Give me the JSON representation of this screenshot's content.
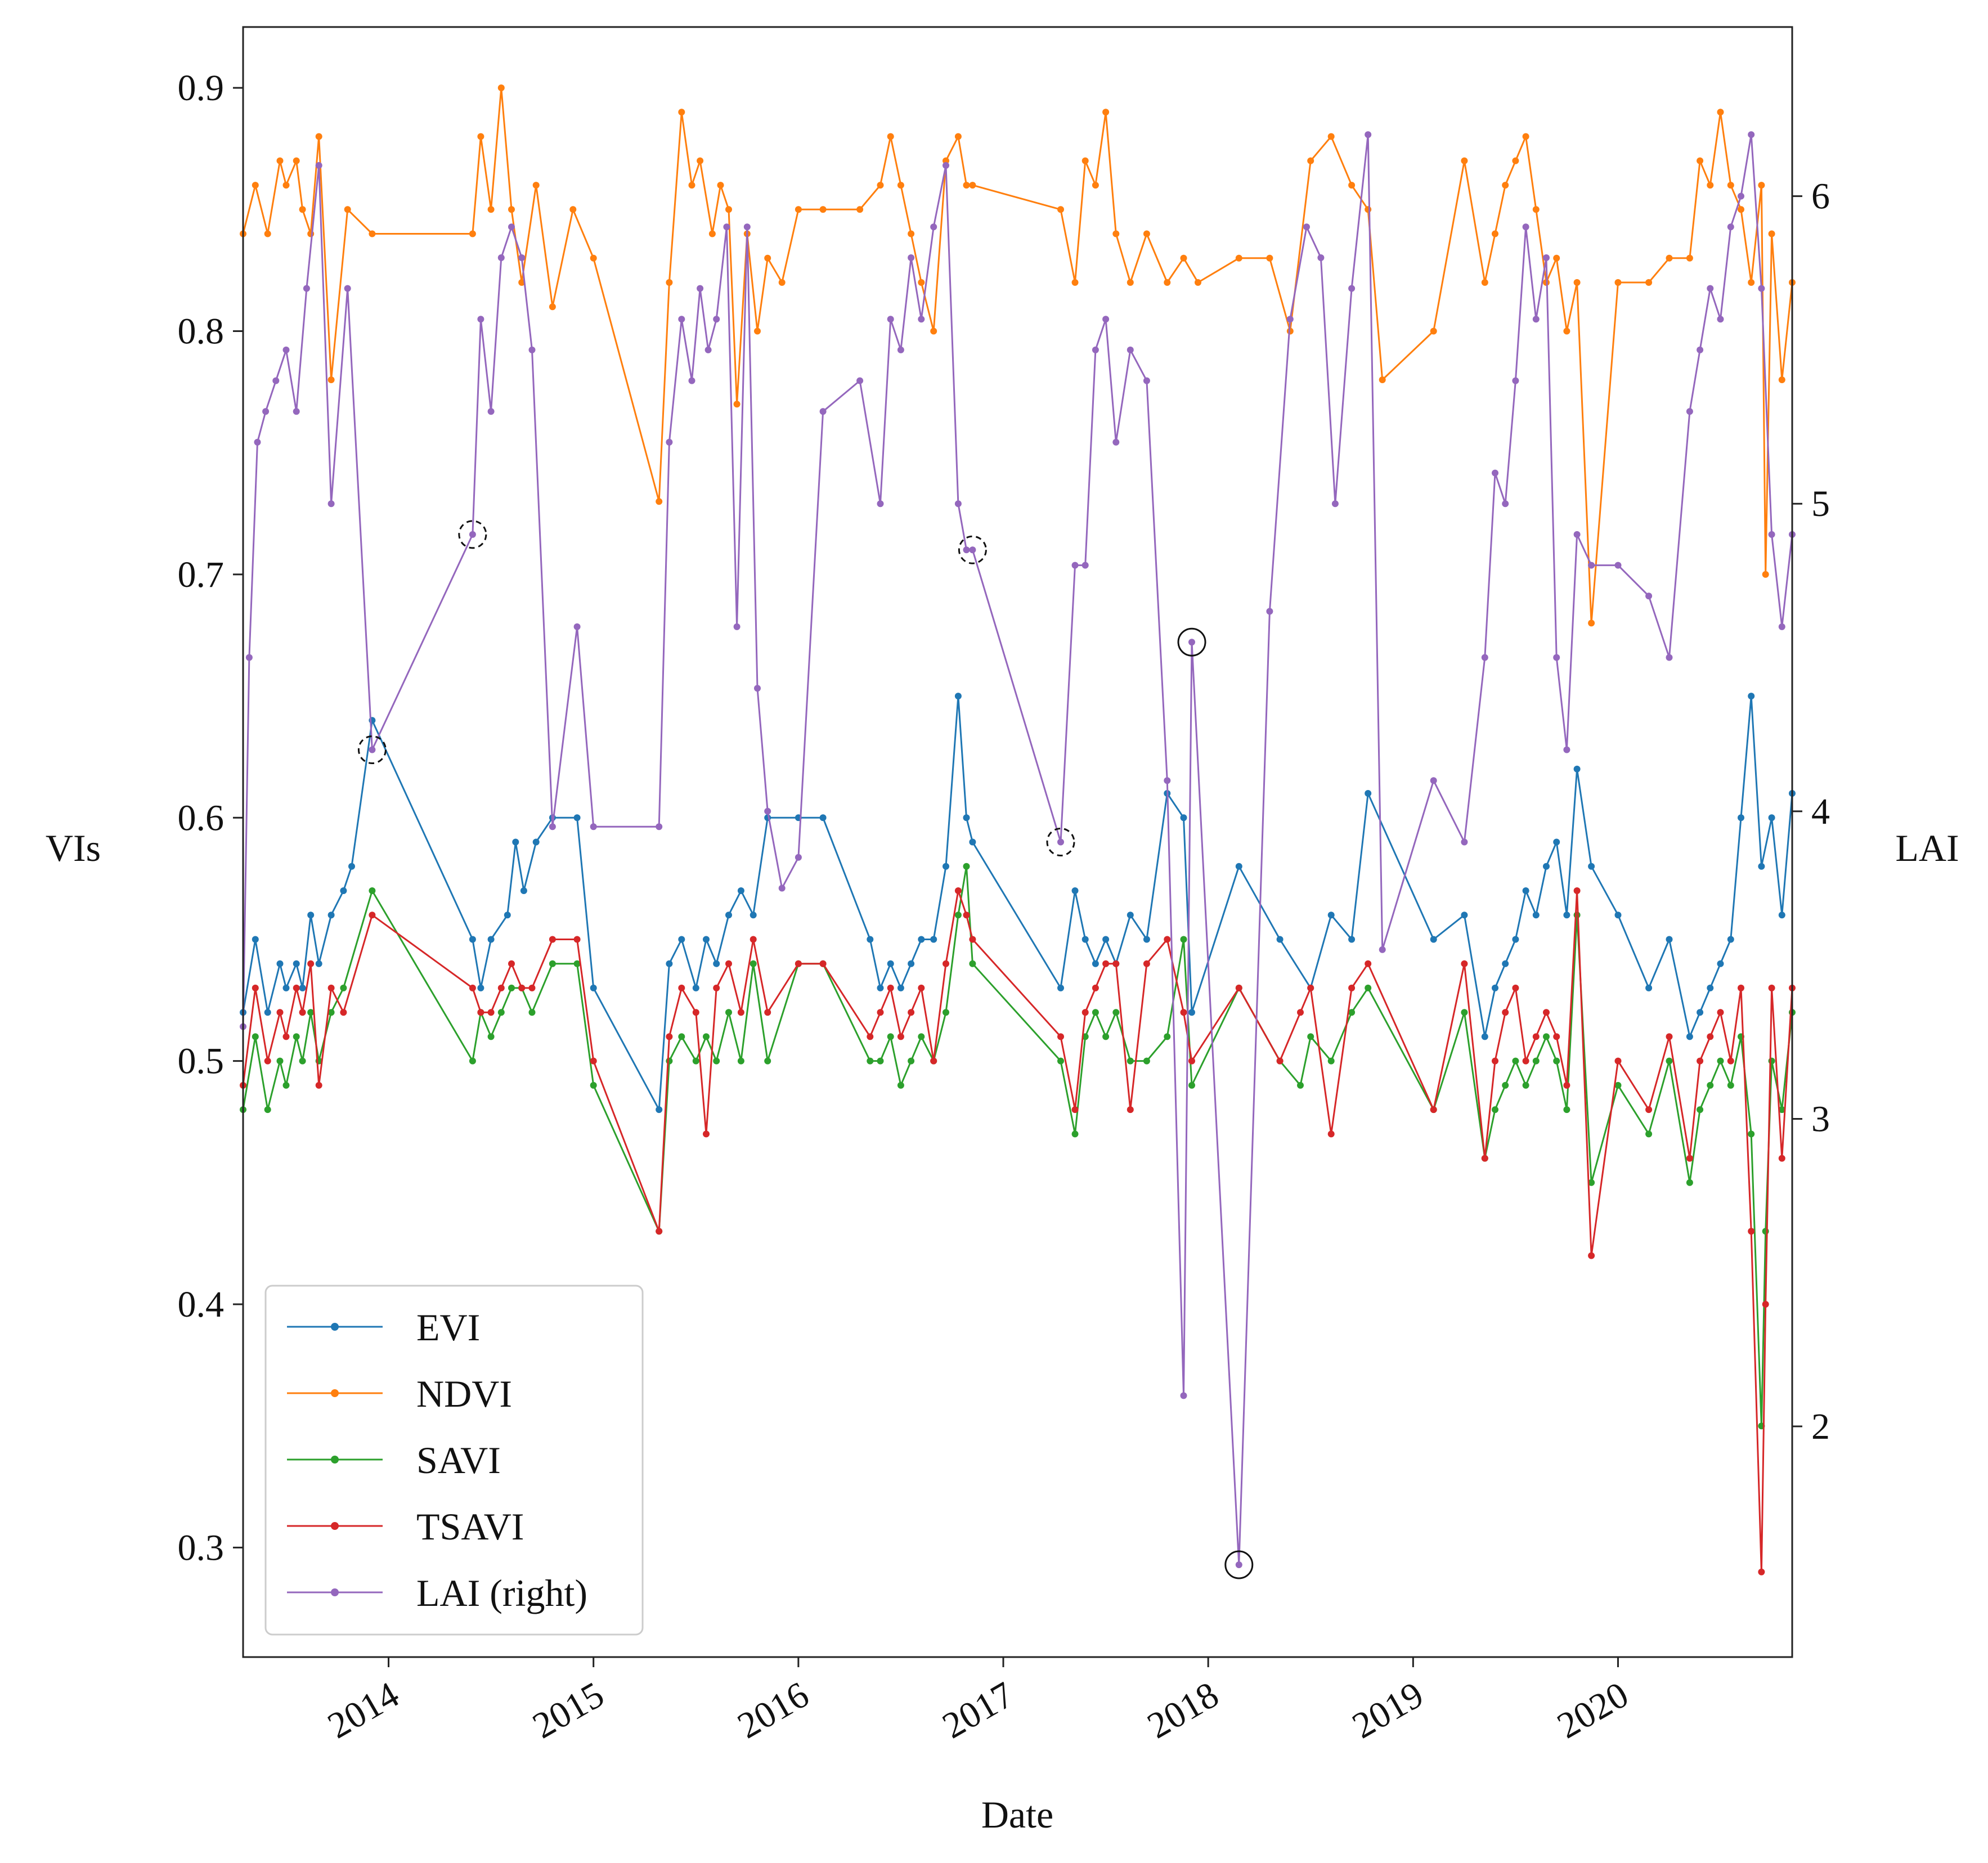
{
  "chart_data": {
    "type": "line",
    "title": "",
    "xlabel": "Date",
    "ylabel_left": "VIs",
    "ylabel_right": "LAI",
    "x_unit": "decimal year",
    "xlim": [
      2013.29,
      2020.85
    ],
    "ylim_left": [
      0.255,
      0.925
    ],
    "ylim_right": [
      1.25,
      6.55
    ],
    "x_ticks": [
      {
        "value": 2014,
        "label": "2014"
      },
      {
        "value": 2015,
        "label": "2015"
      },
      {
        "value": 2016,
        "label": "2016"
      },
      {
        "value": 2017,
        "label": "2017"
      },
      {
        "value": 2018,
        "label": "2018"
      },
      {
        "value": 2019,
        "label": "2019"
      },
      {
        "value": 2020,
        "label": "2020"
      }
    ],
    "y_ticks_left": [
      {
        "value": 0.3,
        "label": "0.3"
      },
      {
        "value": 0.4,
        "label": "0.4"
      },
      {
        "value": 0.5,
        "label": "0.5"
      },
      {
        "value": 0.6,
        "label": "0.6"
      },
      {
        "value": 0.7,
        "label": "0.7"
      },
      {
        "value": 0.8,
        "label": "0.8"
      },
      {
        "value": 0.9,
        "label": "0.9"
      }
    ],
    "y_ticks_right": [
      {
        "value": 2,
        "label": "2"
      },
      {
        "value": 3,
        "label": "3"
      },
      {
        "value": 4,
        "label": "4"
      },
      {
        "value": 5,
        "label": "5"
      },
      {
        "value": 6,
        "label": "6"
      }
    ],
    "legend": {
      "placement": "bottom-left",
      "frame": true
    },
    "series": [
      {
        "name": "EVI",
        "label": "EVI",
        "axis": "left",
        "color": "#1f77b4",
        "x": [
          2013.29,
          2013.35,
          2013.41,
          2013.47,
          2013.5,
          2013.55,
          2013.58,
          2013.62,
          2013.66,
          2013.72,
          2013.78,
          2013.82,
          2013.92,
          2014.41,
          2014.45,
          2014.5,
          2014.58,
          2014.62,
          2014.66,
          2014.72,
          2014.8,
          2014.92,
          2015.0,
          2015.32,
          2015.37,
          2015.43,
          2015.5,
          2015.55,
          2015.6,
          2015.66,
          2015.72,
          2015.78,
          2015.85,
          2016.0,
          2016.12,
          2016.35,
          2016.4,
          2016.45,
          2016.5,
          2016.55,
          2016.6,
          2016.66,
          2016.72,
          2016.78,
          2016.82,
          2016.85,
          2017.28,
          2017.35,
          2017.4,
          2017.45,
          2017.5,
          2017.55,
          2017.62,
          2017.7,
          2017.8,
          2017.88,
          2017.92,
          2018.15,
          2018.35,
          2018.5,
          2018.6,
          2018.7,
          2018.78,
          2019.1,
          2019.25,
          2019.35,
          2019.4,
          2019.45,
          2019.5,
          2019.55,
          2019.6,
          2019.65,
          2019.7,
          2019.75,
          2019.8,
          2019.87,
          2020.0,
          2020.15,
          2020.25,
          2020.35,
          2020.4,
          2020.45,
          2020.5,
          2020.55,
          2020.6,
          2020.65,
          2020.7,
          2020.75,
          2020.8,
          2020.85
        ],
        "y": [
          0.52,
          0.55,
          0.52,
          0.54,
          0.53,
          0.54,
          0.53,
          0.56,
          0.54,
          0.56,
          0.57,
          0.58,
          0.64,
          0.55,
          0.53,
          0.55,
          0.56,
          0.59,
          0.57,
          0.59,
          0.6,
          0.6,
          0.53,
          0.48,
          0.54,
          0.55,
          0.53,
          0.55,
          0.54,
          0.56,
          0.57,
          0.56,
          0.6,
          0.6,
          0.6,
          0.55,
          0.53,
          0.54,
          0.53,
          0.54,
          0.55,
          0.55,
          0.58,
          0.65,
          0.6,
          0.59,
          0.53,
          0.57,
          0.55,
          0.54,
          0.55,
          0.54,
          0.56,
          0.55,
          0.61,
          0.6,
          0.52,
          0.58,
          0.55,
          0.53,
          0.56,
          0.55,
          0.61,
          0.55,
          0.56,
          0.51,
          0.53,
          0.54,
          0.55,
          0.57,
          0.56,
          0.58,
          0.59,
          0.56,
          0.62,
          0.58,
          0.56,
          0.53,
          0.55,
          0.51,
          0.52,
          0.53,
          0.54,
          0.55,
          0.6,
          0.65,
          0.58,
          0.6,
          0.56,
          0.61
        ]
      },
      {
        "name": "NDVI",
        "label": "NDVI",
        "axis": "left",
        "color": "#ff7f0e",
        "x": [
          2013.29,
          2013.35,
          2013.41,
          2013.47,
          2013.5,
          2013.55,
          2013.58,
          2013.62,
          2013.66,
          2013.72,
          2013.8,
          2013.92,
          2014.41,
          2014.45,
          2014.5,
          2014.55,
          2014.6,
          2014.65,
          2014.72,
          2014.8,
          2014.9,
          2015.0,
          2015.32,
          2015.37,
          2015.43,
          2015.48,
          2015.52,
          2015.58,
          2015.62,
          2015.66,
          2015.7,
          2015.75,
          2015.8,
          2015.85,
          2015.92,
          2016.0,
          2016.12,
          2016.3,
          2016.4,
          2016.45,
          2016.5,
          2016.55,
          2016.6,
          2016.66,
          2016.72,
          2016.78,
          2016.82,
          2016.85,
          2017.28,
          2017.35,
          2017.4,
          2017.45,
          2017.5,
          2017.55,
          2017.62,
          2017.7,
          2017.8,
          2017.88,
          2017.95,
          2018.15,
          2018.3,
          2018.4,
          2018.5,
          2018.6,
          2018.7,
          2018.78,
          2018.85,
          2019.1,
          2019.25,
          2019.35,
          2019.4,
          2019.45,
          2019.5,
          2019.55,
          2019.6,
          2019.65,
          2019.7,
          2019.75,
          2019.8,
          2019.87,
          2020.0,
          2020.15,
          2020.25,
          2020.35,
          2020.4,
          2020.45,
          2020.5,
          2020.55,
          2020.6,
          2020.65,
          2020.7,
          2020.72,
          2020.75,
          2020.8,
          2020.85
        ],
        "y": [
          0.84,
          0.86,
          0.84,
          0.87,
          0.86,
          0.87,
          0.85,
          0.84,
          0.88,
          0.78,
          0.85,
          0.84,
          0.84,
          0.88,
          0.85,
          0.9,
          0.85,
          0.82,
          0.86,
          0.81,
          0.85,
          0.83,
          0.73,
          0.82,
          0.89,
          0.86,
          0.87,
          0.84,
          0.86,
          0.85,
          0.77,
          0.84,
          0.8,
          0.83,
          0.82,
          0.85,
          0.85,
          0.85,
          0.86,
          0.88,
          0.86,
          0.84,
          0.82,
          0.8,
          0.87,
          0.88,
          0.86,
          0.86,
          0.85,
          0.82,
          0.87,
          0.86,
          0.89,
          0.84,
          0.82,
          0.84,
          0.82,
          0.83,
          0.82,
          0.83,
          0.83,
          0.8,
          0.87,
          0.88,
          0.86,
          0.85,
          0.78,
          0.8,
          0.87,
          0.82,
          0.84,
          0.86,
          0.87,
          0.88,
          0.85,
          0.82,
          0.83,
          0.8,
          0.82,
          0.68,
          0.82,
          0.82,
          0.83,
          0.83,
          0.87,
          0.86,
          0.89,
          0.86,
          0.85,
          0.82,
          0.86,
          0.7,
          0.84,
          0.78,
          0.82
        ]
      },
      {
        "name": "SAVI",
        "label": "SAVI",
        "axis": "left",
        "color": "#2ca02c",
        "x": [
          2013.29,
          2013.35,
          2013.41,
          2013.47,
          2013.5,
          2013.55,
          2013.58,
          2013.62,
          2013.66,
          2013.72,
          2013.78,
          2013.92,
          2014.41,
          2014.45,
          2014.5,
          2014.55,
          2014.6,
          2014.65,
          2014.7,
          2014.8,
          2014.92,
          2015.0,
          2015.32,
          2015.37,
          2015.43,
          2015.5,
          2015.55,
          2015.6,
          2015.66,
          2015.72,
          2015.78,
          2015.85,
          2016.0,
          2016.12,
          2016.35,
          2016.4,
          2016.45,
          2016.5,
          2016.55,
          2016.6,
          2016.66,
          2016.72,
          2016.78,
          2016.82,
          2016.85,
          2017.28,
          2017.35,
          2017.4,
          2017.45,
          2017.5,
          2017.55,
          2017.62,
          2017.7,
          2017.8,
          2017.88,
          2017.92,
          2018.15,
          2018.35,
          2018.45,
          2018.5,
          2018.6,
          2018.7,
          2018.78,
          2019.1,
          2019.25,
          2019.35,
          2019.4,
          2019.45,
          2019.5,
          2019.55,
          2019.6,
          2019.65,
          2019.7,
          2019.75,
          2019.8,
          2019.87,
          2020.0,
          2020.15,
          2020.25,
          2020.35,
          2020.4,
          2020.45,
          2020.5,
          2020.55,
          2020.6,
          2020.65,
          2020.7,
          2020.72,
          2020.75,
          2020.8,
          2020.85
        ],
        "y": [
          0.48,
          0.51,
          0.48,
          0.5,
          0.49,
          0.51,
          0.5,
          0.52,
          0.5,
          0.52,
          0.53,
          0.57,
          0.5,
          0.52,
          0.51,
          0.52,
          0.53,
          0.53,
          0.52,
          0.54,
          0.54,
          0.49,
          0.43,
          0.5,
          0.51,
          0.5,
          0.51,
          0.5,
          0.52,
          0.5,
          0.54,
          0.5,
          0.54,
          0.54,
          0.5,
          0.5,
          0.51,
          0.49,
          0.5,
          0.51,
          0.5,
          0.52,
          0.56,
          0.58,
          0.54,
          0.5,
          0.47,
          0.51,
          0.52,
          0.51,
          0.52,
          0.5,
          0.5,
          0.51,
          0.55,
          0.49,
          0.53,
          0.5,
          0.49,
          0.51,
          0.5,
          0.52,
          0.53,
          0.48,
          0.52,
          0.46,
          0.48,
          0.49,
          0.5,
          0.49,
          0.5,
          0.51,
          0.5,
          0.48,
          0.56,
          0.45,
          0.49,
          0.47,
          0.5,
          0.45,
          0.48,
          0.49,
          0.5,
          0.49,
          0.51,
          0.47,
          0.35,
          0.43,
          0.5,
          0.48,
          0.52
        ]
      },
      {
        "name": "TSAVI",
        "label": "TSAVI",
        "axis": "left",
        "color": "#d62728",
        "x": [
          2013.29,
          2013.35,
          2013.41,
          2013.47,
          2013.5,
          2013.55,
          2013.58,
          2013.62,
          2013.66,
          2013.72,
          2013.78,
          2013.92,
          2014.41,
          2014.45,
          2014.5,
          2014.55,
          2014.6,
          2014.65,
          2014.7,
          2014.8,
          2014.92,
          2015.0,
          2015.32,
          2015.37,
          2015.43,
          2015.5,
          2015.55,
          2015.6,
          2015.66,
          2015.72,
          2015.78,
          2015.85,
          2016.0,
          2016.12,
          2016.35,
          2016.4,
          2016.45,
          2016.5,
          2016.55,
          2016.6,
          2016.66,
          2016.72,
          2016.78,
          2016.82,
          2016.85,
          2017.28,
          2017.35,
          2017.4,
          2017.45,
          2017.5,
          2017.55,
          2017.62,
          2017.7,
          2017.8,
          2017.88,
          2017.92,
          2018.15,
          2018.35,
          2018.45,
          2018.5,
          2018.6,
          2018.7,
          2018.78,
          2019.1,
          2019.25,
          2019.35,
          2019.4,
          2019.45,
          2019.5,
          2019.55,
          2019.6,
          2019.65,
          2019.7,
          2019.75,
          2019.8,
          2019.87,
          2020.0,
          2020.15,
          2020.25,
          2020.35,
          2020.4,
          2020.45,
          2020.5,
          2020.55,
          2020.6,
          2020.65,
          2020.7,
          2020.72,
          2020.75,
          2020.8,
          2020.85
        ],
        "y": [
          0.49,
          0.53,
          0.5,
          0.52,
          0.51,
          0.53,
          0.52,
          0.54,
          0.49,
          0.53,
          0.52,
          0.56,
          0.53,
          0.52,
          0.52,
          0.53,
          0.54,
          0.53,
          0.53,
          0.55,
          0.55,
          0.5,
          0.43,
          0.51,
          0.53,
          0.52,
          0.47,
          0.53,
          0.54,
          0.52,
          0.55,
          0.52,
          0.54,
          0.54,
          0.51,
          0.52,
          0.53,
          0.51,
          0.52,
          0.53,
          0.5,
          0.54,
          0.57,
          0.56,
          0.55,
          0.51,
          0.48,
          0.52,
          0.53,
          0.54,
          0.54,
          0.48,
          0.54,
          0.55,
          0.52,
          0.5,
          0.53,
          0.5,
          0.52,
          0.53,
          0.47,
          0.53,
          0.54,
          0.48,
          0.54,
          0.46,
          0.5,
          0.52,
          0.53,
          0.5,
          0.51,
          0.52,
          0.51,
          0.49,
          0.57,
          0.42,
          0.5,
          0.48,
          0.51,
          0.46,
          0.5,
          0.51,
          0.52,
          0.5,
          0.53,
          0.43,
          0.29,
          0.4,
          0.53,
          0.46,
          0.53
        ]
      },
      {
        "name": "LAI",
        "label": "LAI (right)",
        "axis": "right",
        "color": "#9467bd",
        "x": [
          2013.29,
          2013.32,
          2013.36,
          2013.4,
          2013.45,
          2013.5,
          2013.55,
          2013.6,
          2013.66,
          2013.72,
          2013.8,
          2013.92,
          2014.41,
          2014.45,
          2014.5,
          2014.55,
          2014.6,
          2014.65,
          2014.7,
          2014.8,
          2014.92,
          2015.0,
          2015.32,
          2015.37,
          2015.43,
          2015.48,
          2015.52,
          2015.56,
          2015.6,
          2015.65,
          2015.7,
          2015.75,
          2015.8,
          2015.85,
          2015.92,
          2016.0,
          2016.12,
          2016.3,
          2016.4,
          2016.45,
          2016.5,
          2016.55,
          2016.6,
          2016.66,
          2016.72,
          2016.78,
          2016.82,
          2016.85,
          2017.28,
          2017.35,
          2017.4,
          2017.45,
          2017.5,
          2017.55,
          2017.62,
          2017.7,
          2017.8,
          2017.88,
          2017.92,
          2018.15,
          2018.3,
          2018.4,
          2018.48,
          2018.55,
          2018.62,
          2018.7,
          2018.78,
          2018.85,
          2019.1,
          2019.25,
          2019.35,
          2019.4,
          2019.45,
          2019.5,
          2019.55,
          2019.6,
          2019.65,
          2019.7,
          2019.75,
          2019.8,
          2019.87,
          2020.0,
          2020.15,
          2020.25,
          2020.35,
          2020.4,
          2020.45,
          2020.5,
          2020.55,
          2020.6,
          2020.65,
          2020.7,
          2020.75,
          2020.8,
          2020.85
        ],
        "y": [
          3.3,
          4.5,
          5.2,
          5.3,
          5.4,
          5.5,
          5.3,
          5.7,
          6.1,
          5.0,
          5.7,
          4.2,
          4.9,
          5.6,
          5.3,
          5.8,
          5.9,
          5.8,
          5.5,
          3.95,
          4.6,
          3.95,
          3.95,
          5.2,
          5.6,
          5.4,
          5.7,
          5.5,
          5.6,
          5.9,
          4.6,
          5.9,
          4.4,
          4.0,
          3.75,
          3.85,
          5.3,
          5.4,
          5.0,
          5.6,
          5.5,
          5.8,
          5.6,
          5.9,
          6.1,
          5.0,
          4.85,
          4.85,
          3.9,
          4.8,
          4.8,
          5.5,
          5.6,
          5.2,
          5.5,
          5.4,
          4.1,
          2.1,
          4.55,
          1.55,
          4.65,
          5.6,
          5.9,
          5.8,
          5.0,
          5.7,
          6.2,
          3.55,
          4.1,
          3.9,
          4.5,
          5.1,
          5.0,
          5.4,
          5.9,
          5.6,
          5.8,
          4.5,
          4.2,
          4.9,
          4.8,
          4.8,
          4.7,
          4.5,
          5.3,
          5.5,
          5.7,
          5.6,
          5.9,
          6.0,
          6.2,
          5.7,
          4.9,
          4.6,
          4.9
        ]
      }
    ],
    "annotations": [
      {
        "type": "circle",
        "style": "dashed",
        "x": 2013.92,
        "y": 4.2,
        "axis": "right"
      },
      {
        "type": "circle",
        "style": "dashed",
        "x": 2014.41,
        "y": 4.9,
        "axis": "right"
      },
      {
        "type": "circle",
        "style": "dashed",
        "x": 2016.85,
        "y": 4.85,
        "axis": "right"
      },
      {
        "type": "circle",
        "style": "dashed",
        "x": 2017.28,
        "y": 3.9,
        "axis": "right"
      },
      {
        "type": "circle",
        "style": "solid",
        "x": 2017.92,
        "y": 4.55,
        "axis": "right"
      },
      {
        "type": "circle",
        "style": "solid",
        "x": 2018.15,
        "y": 1.55,
        "axis": "right"
      }
    ]
  }
}
